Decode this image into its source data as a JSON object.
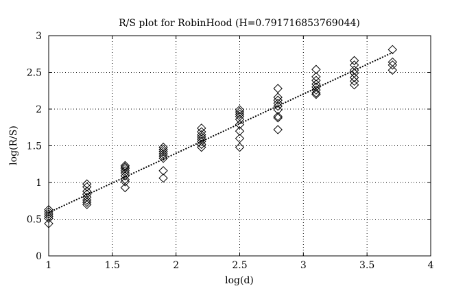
{
  "chart_data": {
    "type": "scatter",
    "title": "R/S plot for RobinHood (H=0.791716853769044)",
    "xlabel": "log(d)",
    "ylabel": "log(R/S)",
    "xlim": [
      1,
      4
    ],
    "ylim": [
      0,
      3
    ],
    "xticks": [
      "1",
      "1.5",
      "2",
      "2.5",
      "3",
      "3.5",
      "4"
    ],
    "yticks": [
      "0",
      "0.5",
      "1",
      "1.5",
      "2",
      "2.5",
      "3"
    ],
    "grid": true,
    "legend": "none",
    "marker": "diamond",
    "series": [
      {
        "marker": "diamond",
        "color": "#000000",
        "points": [
          [
            1.0,
            0.63
          ],
          [
            1.0,
            0.6
          ],
          [
            1.0,
            0.57
          ],
          [
            1.0,
            0.54
          ],
          [
            1.0,
            0.51
          ],
          [
            1.0,
            0.44
          ],
          [
            1.3,
            0.98
          ],
          [
            1.3,
            0.94
          ],
          [
            1.3,
            0.88
          ],
          [
            1.3,
            0.84
          ],
          [
            1.3,
            0.8
          ],
          [
            1.3,
            0.76
          ],
          [
            1.3,
            0.73
          ],
          [
            1.3,
            0.7
          ],
          [
            1.6,
            1.23
          ],
          [
            1.6,
            1.21
          ],
          [
            1.6,
            1.19
          ],
          [
            1.6,
            1.16
          ],
          [
            1.6,
            1.13
          ],
          [
            1.6,
            1.09
          ],
          [
            1.6,
            1.04
          ],
          [
            1.6,
            1.01
          ],
          [
            1.6,
            0.93
          ],
          [
            1.9,
            1.48
          ],
          [
            1.9,
            1.45
          ],
          [
            1.9,
            1.42
          ],
          [
            1.9,
            1.39
          ],
          [
            1.9,
            1.36
          ],
          [
            1.9,
            1.33
          ],
          [
            1.9,
            1.16
          ],
          [
            1.9,
            1.06
          ],
          [
            2.2,
            1.74
          ],
          [
            2.2,
            1.69
          ],
          [
            2.2,
            1.65
          ],
          [
            2.2,
            1.62
          ],
          [
            2.2,
            1.59
          ],
          [
            2.2,
            1.56
          ],
          [
            2.2,
            1.52
          ],
          [
            2.2,
            1.48
          ],
          [
            2.5,
            1.99
          ],
          [
            2.5,
            1.96
          ],
          [
            2.5,
            1.93
          ],
          [
            2.5,
            1.9
          ],
          [
            2.5,
            1.86
          ],
          [
            2.5,
            1.79
          ],
          [
            2.5,
            1.7
          ],
          [
            2.5,
            1.6
          ],
          [
            2.5,
            1.48
          ],
          [
            2.8,
            2.28
          ],
          [
            2.8,
            2.16
          ],
          [
            2.8,
            2.12
          ],
          [
            2.8,
            2.08
          ],
          [
            2.8,
            2.04
          ],
          [
            2.8,
            1.99
          ],
          [
            2.8,
            1.9
          ],
          [
            2.8,
            1.88
          ],
          [
            2.8,
            1.72
          ],
          [
            3.1,
            2.54
          ],
          [
            3.1,
            2.44
          ],
          [
            3.1,
            2.39
          ],
          [
            3.1,
            2.34
          ],
          [
            3.1,
            2.3
          ],
          [
            3.1,
            2.26
          ],
          [
            3.1,
            2.22
          ],
          [
            3.1,
            2.2
          ],
          [
            3.4,
            2.66
          ],
          [
            3.4,
            2.6
          ],
          [
            3.4,
            2.53
          ],
          [
            3.4,
            2.49
          ],
          [
            3.4,
            2.43
          ],
          [
            3.4,
            2.38
          ],
          [
            3.4,
            2.33
          ],
          [
            3.7,
            2.81
          ],
          [
            3.7,
            2.64
          ],
          [
            3.7,
            2.6
          ],
          [
            3.7,
            2.53
          ]
        ]
      }
    ],
    "fit_line": {
      "style": "dotted",
      "color": "#000000",
      "x": [
        1.0,
        3.7
      ],
      "y": [
        0.59,
        2.77
      ]
    },
    "text_color": "#000000",
    "grid_color": "#000000"
  }
}
